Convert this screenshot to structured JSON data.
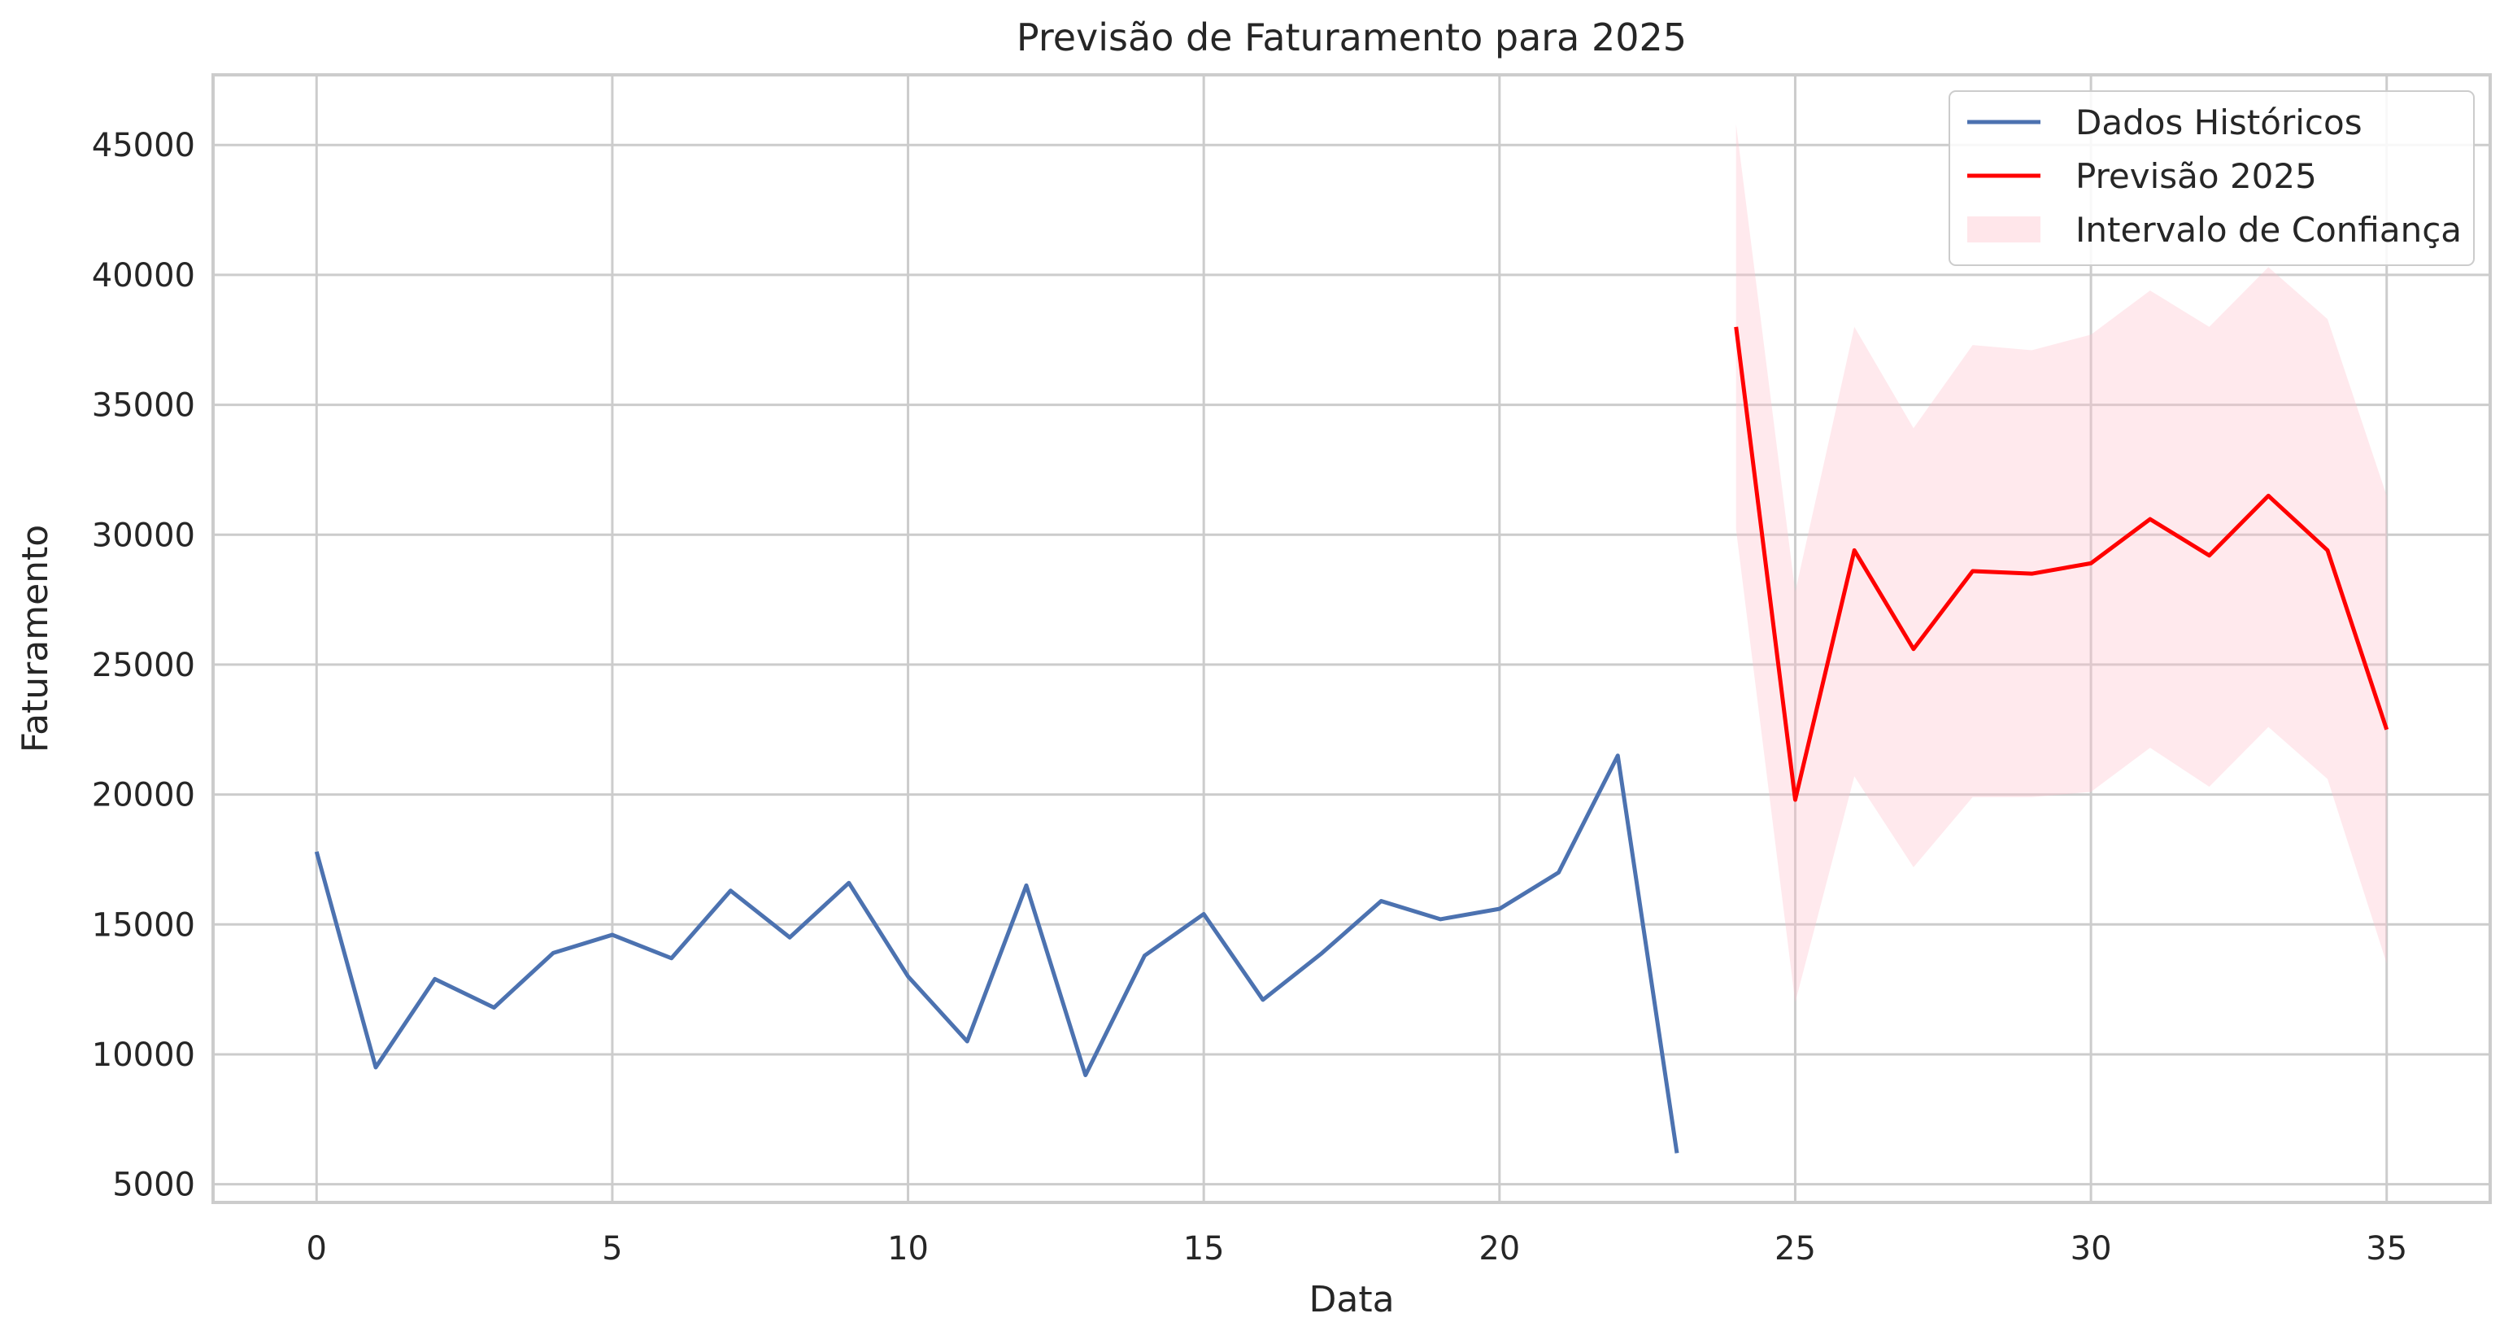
{
  "chart_data": {
    "type": "line",
    "title": "Previsão de Faturamento para 2025",
    "xlabel": "Data",
    "ylabel": "Faturamento",
    "xlim": [
      -1.75,
      36.75
    ],
    "ylim": [
      4300,
      47700
    ],
    "xticks": [
      0,
      5,
      10,
      15,
      20,
      25,
      30,
      35
    ],
    "yticks": [
      5000,
      10000,
      15000,
      20000,
      25000,
      30000,
      35000,
      40000,
      45000
    ],
    "grid": true,
    "legend_position": "top-right",
    "series": [
      {
        "name": "Dados Históricos",
        "color": "#4c72b0",
        "x": [
          0,
          1,
          2,
          3,
          4,
          5,
          6,
          7,
          8,
          9,
          10,
          11,
          12,
          13,
          14,
          15,
          16,
          17,
          18,
          19,
          20,
          21,
          22,
          23
        ],
        "values": [
          17800,
          9500,
          12900,
          11800,
          13900,
          14600,
          13700,
          16300,
          14500,
          16600,
          13000,
          10500,
          16500,
          9200,
          13800,
          15400,
          12100,
          13900,
          15900,
          15200,
          15600,
          17000,
          21500,
          6200
        ]
      },
      {
        "name": "Previsão 2025",
        "color": "#ff0000",
        "x": [
          24,
          25,
          26,
          27,
          28,
          29,
          30,
          31,
          32,
          33,
          34,
          35
        ],
        "values": [
          38000,
          19800,
          29400,
          25600,
          28600,
          28500,
          28900,
          30600,
          29200,
          31500,
          29400,
          22500
        ]
      }
    ],
    "confidence_interval": {
      "name": "Intervalo de Confiança",
      "color": "#ffc0cb",
      "x": [
        24,
        25,
        26,
        27,
        28,
        29,
        30,
        31,
        32,
        33,
        34,
        35
      ],
      "lower": [
        30200,
        12000,
        20700,
        17200,
        19900,
        19900,
        20100,
        21800,
        20300,
        22600,
        20600,
        13500
      ],
      "upper": [
        45800,
        27800,
        38000,
        34100,
        37300,
        37100,
        37700,
        39400,
        38000,
        40300,
        38300,
        31500
      ]
    }
  }
}
